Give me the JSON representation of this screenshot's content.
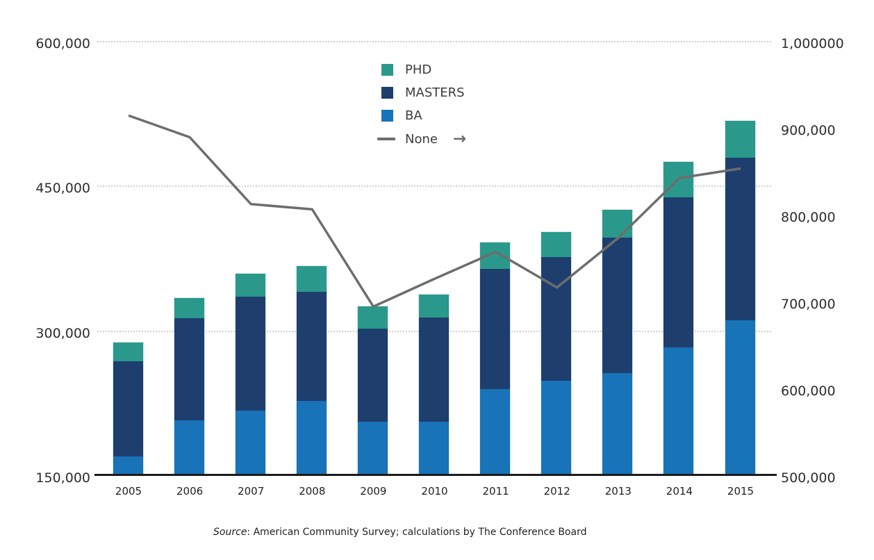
{
  "chart_data": {
    "type": "bar",
    "subtype": "stacked-bars-with-line-on-secondary-axis",
    "categories": [
      "2005",
      "2006",
      "2007",
      "2008",
      "2009",
      "2010",
      "2011",
      "2012",
      "2013",
      "2014",
      "2015"
    ],
    "stack_order_bottom_to_top": [
      "BA",
      "MASTERS",
      "PHD"
    ],
    "series": [
      {
        "name": "PHD",
        "type": "bar",
        "color": "#2a998c",
        "values": [
          19500,
          21000,
          24500,
          27500,
          23000,
          24000,
          27500,
          26000,
          29000,
          36500,
          38000
        ]
      },
      {
        "name": "MASTERS",
        "type": "bar",
        "color": "#1e3e6e",
        "values": [
          99500,
          106500,
          118500,
          113500,
          97500,
          109000,
          125500,
          129000,
          141000,
          156500,
          169000
        ]
      },
      {
        "name": "BA",
        "type": "bar",
        "color": "#1873b8",
        "values": [
          170000,
          207500,
          217500,
          227500,
          206000,
          206000,
          239500,
          248500,
          256500,
          283000,
          311500
        ]
      },
      {
        "name": "None",
        "type": "line",
        "axis": "right",
        "color": "#6d6d6d",
        "values": [
          915000,
          890000,
          813000,
          807000,
          695000,
          727000,
          758000,
          717000,
          774000,
          843000,
          854000
        ]
      }
    ],
    "left_axis": {
      "min": 150000,
      "max": 600000,
      "ticks": [
        {
          "value": 600000,
          "label": "600,000"
        },
        {
          "value": 450000,
          "label": "450,000"
        },
        {
          "value": 300000,
          "label": "300,000"
        },
        {
          "value": 150000,
          "label": "150,000"
        }
      ]
    },
    "right_axis": {
      "min": 500000,
      "max": 1000000,
      "ticks": [
        {
          "value": 1000000,
          "label": "1,000000"
        },
        {
          "value": 900000,
          "label": "900,000"
        },
        {
          "value": 800000,
          "label": "800,000"
        },
        {
          "value": 700000,
          "label": "700,000"
        },
        {
          "value": 600000,
          "label": "600,000"
        },
        {
          "value": 500000,
          "label": "500,000"
        }
      ]
    },
    "grid": "dotted-horizontal",
    "legend_position": "top-center"
  },
  "legend": {
    "items": [
      {
        "label": "PHD",
        "swatch": "square",
        "color": "#2a998c"
      },
      {
        "label": "MASTERS",
        "swatch": "square",
        "color": "#1e3e6e"
      },
      {
        "label": "BA",
        "swatch": "square",
        "color": "#1873b8"
      },
      {
        "label": "None",
        "swatch": "line",
        "color": "#6d6d6d",
        "arrow": "→"
      }
    ]
  },
  "source_note": {
    "label": "Source",
    "text": ": American Community Survey; calculations by The Conference Board"
  },
  "colors": {
    "phd": "#2a998c",
    "masters": "#1e3e6e",
    "ba": "#1873b8",
    "line": "#6d6d6d",
    "gridline": "#d0d0d0",
    "axis_line": "#1b1b1b"
  }
}
